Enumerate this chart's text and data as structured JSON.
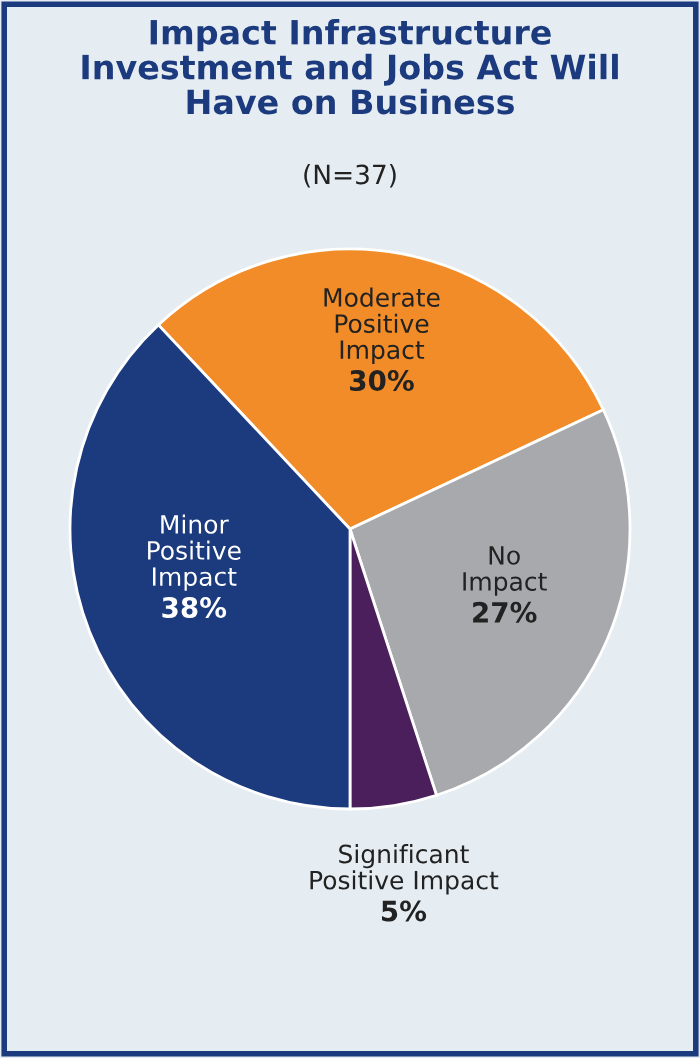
{
  "chart_data": {
    "type": "pie",
    "title": "Impact Infrastructure\nInvestment and Jobs Act Will\nHave on Business",
    "subtitle": "(N=37)",
    "categories": [
      "Moderate\nPositive\nImpact",
      "No\nImpact",
      "Significant\nPositive Impact",
      "Minor\nPositive\nImpact"
    ],
    "values": [
      30,
      27,
      5,
      38
    ],
    "value_labels": [
      "30%",
      "27%",
      "5%",
      "38%"
    ],
    "colors": [
      "#f28c28",
      "#a7a9ac",
      "#4a1f5c",
      "#1c3a7e"
    ]
  }
}
